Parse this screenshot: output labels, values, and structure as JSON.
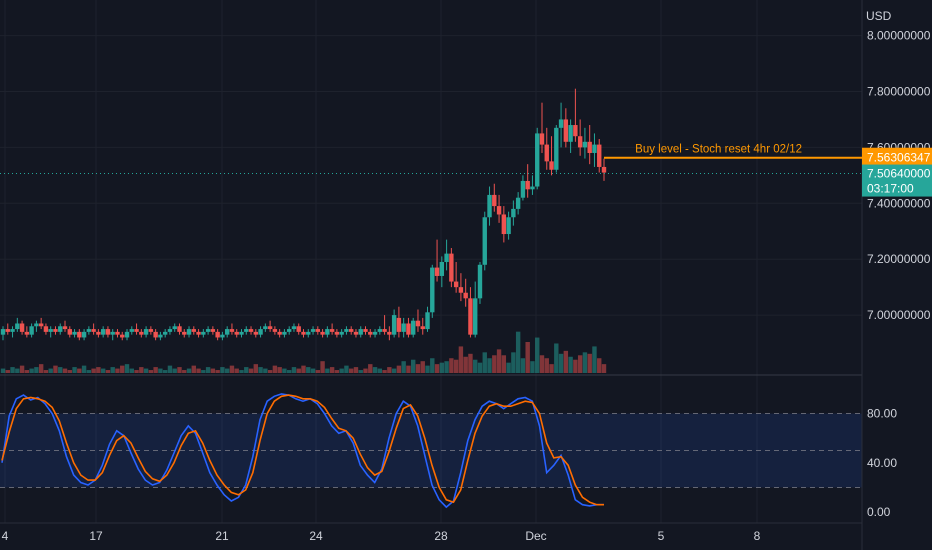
{
  "header": {
    "currency": "USD"
  },
  "chart_data": [
    {
      "type": "candlestick",
      "title": "",
      "y_unit": "USD",
      "x_tick_labels": [
        "4",
        "17",
        "21",
        "24",
        "28",
        "Dec",
        "5",
        "8"
      ],
      "price_ticks": [
        "7.00000000",
        "7.20000000",
        "7.40000000",
        "7.60000000",
        "7.80000000",
        "8.00000000"
      ],
      "ylim": [
        6.8,
        8.02
      ],
      "grid": true,
      "candles": [
        [
          6.93,
          6.96,
          6.91,
          6.95
        ],
        [
          6.95,
          6.97,
          6.93,
          6.94
        ],
        [
          6.94,
          6.96,
          6.92,
          6.95
        ],
        [
          6.95,
          6.99,
          6.94,
          6.97
        ],
        [
          6.97,
          6.98,
          6.93,
          6.94
        ],
        [
          6.94,
          6.96,
          6.92,
          6.93
        ],
        [
          6.93,
          6.97,
          6.92,
          6.96
        ],
        [
          6.96,
          6.98,
          6.94,
          6.97
        ],
        [
          6.97,
          6.99,
          6.95,
          6.96
        ],
        [
          6.96,
          6.97,
          6.93,
          6.94
        ],
        [
          6.94,
          6.96,
          6.92,
          6.95
        ],
        [
          6.95,
          6.96,
          6.93,
          6.94
        ],
        [
          6.94,
          6.97,
          6.93,
          6.96
        ],
        [
          6.96,
          6.98,
          6.94,
          6.95
        ],
        [
          6.95,
          6.96,
          6.92,
          6.93
        ],
        [
          6.93,
          6.95,
          6.92,
          6.94
        ],
        [
          6.94,
          6.95,
          6.91,
          6.92
        ],
        [
          6.92,
          6.95,
          6.91,
          6.94
        ],
        [
          6.94,
          6.96,
          6.93,
          6.95
        ],
        [
          6.95,
          6.97,
          6.93,
          6.94
        ],
        [
          6.94,
          6.95,
          6.92,
          6.93
        ],
        [
          6.93,
          6.96,
          6.92,
          6.95
        ],
        [
          6.95,
          6.96,
          6.92,
          6.93
        ],
        [
          6.93,
          6.95,
          6.91,
          6.94
        ],
        [
          6.94,
          6.95,
          6.92,
          6.93
        ],
        [
          6.93,
          6.94,
          6.91,
          6.92
        ],
        [
          6.92,
          6.95,
          6.91,
          6.94
        ],
        [
          6.94,
          6.96,
          6.93,
          6.95
        ],
        [
          6.95,
          6.97,
          6.93,
          6.94
        ],
        [
          6.94,
          6.95,
          6.92,
          6.93
        ],
        [
          6.93,
          6.96,
          6.92,
          6.95
        ],
        [
          6.95,
          6.96,
          6.93,
          6.94
        ],
        [
          6.94,
          6.95,
          6.91,
          6.92
        ],
        [
          6.92,
          6.94,
          6.91,
          6.93
        ],
        [
          6.93,
          6.95,
          6.92,
          6.94
        ],
        [
          6.94,
          6.96,
          6.93,
          6.95
        ],
        [
          6.95,
          6.97,
          6.94,
          6.96
        ],
        [
          6.96,
          6.97,
          6.93,
          6.94
        ],
        [
          6.94,
          6.95,
          6.92,
          6.93
        ],
        [
          6.93,
          6.96,
          6.92,
          6.95
        ],
        [
          6.95,
          6.96,
          6.93,
          6.94
        ],
        [
          6.94,
          6.95,
          6.92,
          6.93
        ],
        [
          6.93,
          6.95,
          6.92,
          6.94
        ],
        [
          6.94,
          6.96,
          6.93,
          6.95
        ],
        [
          6.95,
          6.96,
          6.93,
          6.94
        ],
        [
          6.94,
          6.95,
          6.91,
          6.92
        ],
        [
          6.92,
          6.94,
          6.91,
          6.93
        ],
        [
          6.93,
          6.96,
          6.92,
          6.95
        ],
        [
          6.95,
          6.97,
          6.93,
          6.94
        ],
        [
          6.94,
          6.95,
          6.92,
          6.93
        ],
        [
          6.93,
          6.95,
          6.92,
          6.94
        ],
        [
          6.94,
          6.96,
          6.93,
          6.95
        ],
        [
          6.95,
          6.96,
          6.93,
          6.94
        ],
        [
          6.94,
          6.95,
          6.92,
          6.93
        ],
        [
          6.93,
          6.96,
          6.92,
          6.95
        ],
        [
          6.95,
          6.97,
          6.94,
          6.96
        ],
        [
          6.96,
          6.98,
          6.94,
          6.95
        ],
        [
          6.95,
          6.96,
          6.93,
          6.94
        ],
        [
          6.94,
          6.95,
          6.92,
          6.93
        ],
        [
          6.93,
          6.95,
          6.92,
          6.94
        ],
        [
          6.94,
          6.96,
          6.93,
          6.95
        ],
        [
          6.95,
          6.97,
          6.94,
          6.96
        ],
        [
          6.96,
          6.97,
          6.93,
          6.94
        ],
        [
          6.94,
          6.95,
          6.92,
          6.93
        ],
        [
          6.93,
          6.95,
          6.92,
          6.94
        ],
        [
          6.94,
          6.96,
          6.93,
          6.95
        ],
        [
          6.95,
          6.96,
          6.93,
          6.94
        ],
        [
          6.94,
          6.95,
          6.92,
          6.93
        ],
        [
          6.93,
          6.96,
          6.92,
          6.95
        ],
        [
          6.95,
          6.97,
          6.93,
          6.94
        ],
        [
          6.94,
          6.95,
          6.92,
          6.93
        ],
        [
          6.93,
          6.95,
          6.92,
          6.94
        ],
        [
          6.94,
          6.96,
          6.93,
          6.95
        ],
        [
          6.95,
          6.96,
          6.93,
          6.94
        ],
        [
          6.94,
          6.95,
          6.92,
          6.93
        ],
        [
          6.93,
          6.96,
          6.92,
          6.95
        ],
        [
          6.95,
          6.96,
          6.93,
          6.94
        ],
        [
          6.94,
          6.95,
          6.92,
          6.93
        ],
        [
          6.93,
          6.95,
          6.92,
          6.94
        ],
        [
          6.94,
          6.96,
          6.93,
          6.95
        ],
        [
          6.95,
          7.0,
          6.93,
          6.94
        ],
        [
          6.94,
          6.96,
          6.91,
          6.93
        ],
        [
          6.93,
          7.02,
          6.92,
          7.0
        ],
        [
          6.99,
          7.03,
          6.92,
          6.94
        ],
        [
          6.94,
          6.99,
          6.92,
          6.97
        ],
        [
          6.97,
          6.99,
          6.92,
          6.93
        ],
        [
          6.93,
          6.99,
          6.92,
          6.98
        ],
        [
          6.98,
          7.02,
          6.94,
          6.96
        ],
        [
          6.96,
          6.99,
          6.93,
          6.95
        ],
        [
          6.95,
          7.03,
          6.94,
          7.01
        ],
        [
          7.01,
          7.18,
          6.99,
          7.17
        ],
        [
          7.17,
          7.27,
          7.12,
          7.14
        ],
        [
          7.14,
          7.21,
          7.1,
          7.19
        ],
        [
          7.19,
          7.27,
          7.16,
          7.22
        ],
        [
          7.22,
          7.24,
          7.1,
          7.12
        ],
        [
          7.12,
          7.19,
          7.08,
          7.1
        ],
        [
          7.1,
          7.15,
          7.05,
          7.08
        ],
        [
          7.08,
          7.13,
          7.03,
          7.06
        ],
        [
          7.06,
          7.1,
          6.92,
          6.93
        ],
        [
          6.93,
          7.12,
          6.92,
          7.06
        ],
        [
          7.06,
          7.19,
          7.04,
          7.18
        ],
        [
          7.18,
          7.37,
          7.16,
          7.35
        ],
        [
          7.35,
          7.46,
          7.32,
          7.43
        ],
        [
          7.43,
          7.47,
          7.37,
          7.39
        ],
        [
          7.39,
          7.43,
          7.33,
          7.36
        ],
        [
          7.36,
          7.39,
          7.26,
          7.29
        ],
        [
          7.29,
          7.37,
          7.27,
          7.35
        ],
        [
          7.35,
          7.41,
          7.32,
          7.38
        ],
        [
          7.38,
          7.44,
          7.36,
          7.42
        ],
        [
          7.42,
          7.5,
          7.41,
          7.48
        ],
        [
          7.48,
          7.54,
          7.42,
          7.45
        ],
        [
          7.45,
          7.5,
          7.43,
          7.46
        ],
        [
          7.46,
          7.67,
          7.45,
          7.65
        ],
        [
          7.65,
          7.76,
          7.58,
          7.61
        ],
        [
          7.61,
          7.67,
          7.52,
          7.55
        ],
        [
          7.55,
          7.64,
          7.5,
          7.52
        ],
        [
          7.52,
          7.68,
          7.51,
          7.67
        ],
        [
          7.67,
          7.76,
          7.6,
          7.7
        ],
        [
          7.7,
          7.74,
          7.6,
          7.62
        ],
        [
          7.62,
          7.7,
          7.58,
          7.68
        ],
        [
          7.68,
          7.81,
          7.62,
          7.64
        ],
        [
          7.64,
          7.7,
          7.57,
          7.6
        ],
        [
          7.6,
          7.67,
          7.56,
          7.62
        ],
        [
          7.62,
          7.68,
          7.54,
          7.58
        ],
        [
          7.58,
          7.65,
          7.53,
          7.61
        ],
        [
          7.61,
          7.63,
          7.51,
          7.53
        ],
        [
          7.53,
          7.56,
          7.48,
          7.51
        ]
      ],
      "volumes": [
        3,
        2,
        4,
        3,
        5,
        2,
        3,
        4,
        6,
        2,
        3,
        5,
        4,
        3,
        2,
        4,
        3,
        5,
        2,
        3,
        4,
        3,
        2,
        4,
        3,
        5,
        6,
        3,
        2,
        4,
        3,
        2,
        4,
        3,
        2,
        5,
        3,
        4,
        2,
        3,
        5,
        3,
        2,
        4,
        3,
        2,
        4,
        3,
        5,
        3,
        2,
        4,
        3,
        6,
        4,
        3,
        2,
        5,
        4,
        3,
        2,
        4,
        3,
        5,
        4,
        3,
        2,
        8,
        3,
        4,
        2,
        3,
        5,
        3,
        4,
        2,
        3,
        6,
        4,
        3,
        2,
        4,
        3,
        5,
        8,
        5,
        9,
        6,
        8,
        5,
        10,
        6,
        7,
        8,
        10,
        9,
        18,
        11,
        13,
        9,
        7,
        14,
        10,
        12,
        16,
        12,
        7,
        14,
        28,
        10,
        21,
        8,
        24,
        12,
        10,
        6,
        20,
        13,
        15,
        11,
        9,
        12,
        14,
        13,
        18,
        10,
        6
      ],
      "current_price": 7.5064,
      "price_label": "7.50640000",
      "countdown": "03:17:00",
      "horizontal_line": {
        "price": 7.56306347,
        "label": "7.56306347",
        "annotation": "Buy level - Stoch reset 4hr 02/12",
        "color": "#ff9800"
      },
      "colors": {
        "up": "#26a69a",
        "down": "#ef5350",
        "background": "#131722"
      }
    },
    {
      "type": "line",
      "subtype": "stochastic",
      "ylim": [
        -4,
        104
      ],
      "y_ticks": [
        "0.00",
        "40.00",
        "80.00"
      ],
      "bands": {
        "upper": 80,
        "middle": 50,
        "lower": 20
      },
      "series": [
        {
          "color": "#2962ff",
          "values": [
            40,
            78,
            92,
            95,
            91,
            93,
            88,
            80,
            66,
            45,
            30,
            24,
            22,
            26,
            38,
            55,
            66,
            62,
            48,
            35,
            26,
            22,
            24,
            34,
            48,
            62,
            70,
            64,
            48,
            32,
            22,
            14,
            9,
            12,
            22,
            45,
            75,
            90,
            94,
            96,
            95,
            92,
            90,
            92,
            88,
            80,
            70,
            64,
            66,
            56,
            38,
            30,
            24,
            35,
            60,
            80,
            90,
            86,
            70,
            46,
            22,
            10,
            4,
            9,
            32,
            58,
            75,
            86,
            90,
            88,
            84,
            88,
            92,
            93,
            90,
            70,
            32,
            38,
            46,
            30,
            10,
            6,
            5,
            6,
            6
          ]
        },
        {
          "color": "#ff6d00",
          "values": [
            42,
            65,
            84,
            92,
            93,
            92,
            90,
            85,
            74,
            56,
            40,
            30,
            26,
            26,
            32,
            46,
            58,
            62,
            56,
            44,
            33,
            27,
            25,
            30,
            40,
            54,
            64,
            66,
            56,
            42,
            30,
            22,
            16,
            14,
            18,
            32,
            58,
            80,
            90,
            94,
            95,
            94,
            92,
            92,
            90,
            85,
            76,
            68,
            66,
            60,
            47,
            36,
            30,
            33,
            49,
            68,
            84,
            87,
            78,
            60,
            38,
            20,
            10,
            8,
            18,
            42,
            64,
            78,
            86,
            88,
            86,
            86,
            88,
            90,
            89,
            80,
            56,
            44,
            45,
            38,
            22,
            12,
            8,
            6,
            6
          ]
        }
      ]
    }
  ]
}
